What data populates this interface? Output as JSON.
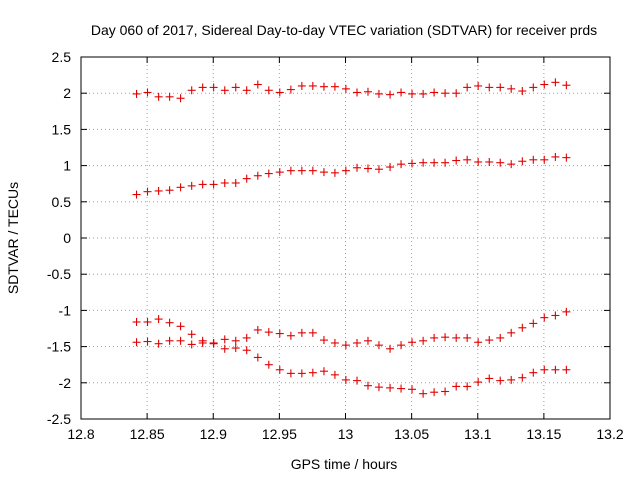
{
  "chart_data": {
    "type": "scatter",
    "title": "Day 060 of 2017, Sidereal Day-to-day VTEC variation (SDTVAR) for receiver prds",
    "xlabel": "GPS time / hours",
    "ylabel": "SDTVAR / TECUs",
    "xlim": [
      12.8,
      13.2
    ],
    "ylim": [
      -2.5,
      2.5
    ],
    "xticks": [
      12.8,
      12.85,
      12.9,
      12.95,
      13.0,
      13.05,
      13.1,
      13.15,
      13.2
    ],
    "xtick_labels": [
      "12.8",
      "12.85",
      "12.9",
      "12.95",
      "13",
      "13.05",
      "13.1",
      "13.15",
      "13.2"
    ],
    "yticks": [
      2.5,
      2,
      1.5,
      1,
      0.5,
      0,
      -0.5,
      -1,
      -1.5,
      -2,
      -2.5
    ],
    "ytick_labels": [
      "2.5",
      "2",
      "1.5",
      "1",
      "0.5",
      "0",
      "-0.5",
      "-1",
      "-1.5",
      "-2",
      "-2.5"
    ],
    "grid": true,
    "marker": "+",
    "color": "#e00000",
    "x": [
      12.842,
      12.8503,
      12.8587,
      12.867,
      12.8753,
      12.8837,
      12.892,
      12.9003,
      12.9087,
      12.917,
      12.9253,
      12.9337,
      12.942,
      12.9503,
      12.9587,
      12.967,
      12.9753,
      12.9837,
      12.992,
      13.0003,
      13.0087,
      13.017,
      13.0253,
      13.0337,
      13.042,
      13.0503,
      13.0587,
      13.067,
      13.0753,
      13.0837,
      13.092,
      13.1003,
      13.1087,
      13.117,
      13.1253,
      13.1337,
      13.142,
      13.1503,
      13.1587,
      13.167
    ],
    "series": [
      {
        "name": "series-1",
        "values": [
          1.99,
          2.01,
          1.95,
          1.95,
          1.93,
          2.04,
          2.08,
          2.08,
          2.04,
          2.08,
          2.04,
          2.12,
          2.04,
          2.01,
          2.05,
          2.1,
          2.1,
          2.09,
          2.09,
          2.06,
          2.01,
          2.02,
          1.99,
          1.98,
          2.01,
          1.99,
          1.99,
          2.01,
          2.0,
          2.0,
          2.08,
          2.1,
          2.08,
          2.08,
          2.06,
          2.03,
          2.08,
          2.12,
          2.15,
          2.11
        ]
      },
      {
        "name": "series-2",
        "values": [
          0.6,
          0.64,
          0.65,
          0.66,
          0.7,
          0.72,
          0.74,
          0.74,
          0.76,
          0.76,
          0.82,
          0.86,
          0.89,
          0.91,
          0.93,
          0.93,
          0.93,
          0.91,
          0.9,
          0.93,
          0.97,
          0.96,
          0.95,
          0.98,
          1.02,
          1.03,
          1.04,
          1.04,
          1.04,
          1.07,
          1.08,
          1.05,
          1.05,
          1.04,
          1.02,
          1.06,
          1.08,
          1.08,
          1.12,
          1.11
        ]
      },
      {
        "name": "series-3",
        "values": [
          -1.16,
          -1.16,
          -1.12,
          -1.17,
          -1.22,
          -1.33,
          -1.42,
          -1.45,
          -1.4,
          -1.42,
          -1.38,
          -1.27,
          -1.3,
          -1.32,
          -1.35,
          -1.31,
          -1.31,
          -1.41,
          -1.45,
          -1.48,
          -1.45,
          -1.42,
          -1.48,
          -1.53,
          -1.48,
          -1.44,
          -1.42,
          -1.38,
          -1.37,
          -1.38,
          -1.38,
          -1.44,
          -1.41,
          -1.38,
          -1.31,
          -1.24,
          -1.18,
          -1.1,
          -1.07,
          -1.02
        ]
      },
      {
        "name": "series-4",
        "values": [
          -1.44,
          -1.43,
          -1.46,
          -1.42,
          -1.42,
          -1.47,
          -1.45,
          -1.46,
          -1.53,
          -1.52,
          -1.55,
          -1.65,
          -1.75,
          -1.82,
          -1.87,
          -1.87,
          -1.86,
          -1.84,
          -1.89,
          -1.96,
          -1.97,
          -2.04,
          -2.06,
          -2.07,
          -2.08,
          -2.09,
          -2.15,
          -2.13,
          -2.12,
          -2.05,
          -2.05,
          -1.99,
          -1.94,
          -1.97,
          -1.96,
          -1.93,
          -1.86,
          -1.82,
          -1.82,
          -1.82
        ]
      }
    ]
  }
}
